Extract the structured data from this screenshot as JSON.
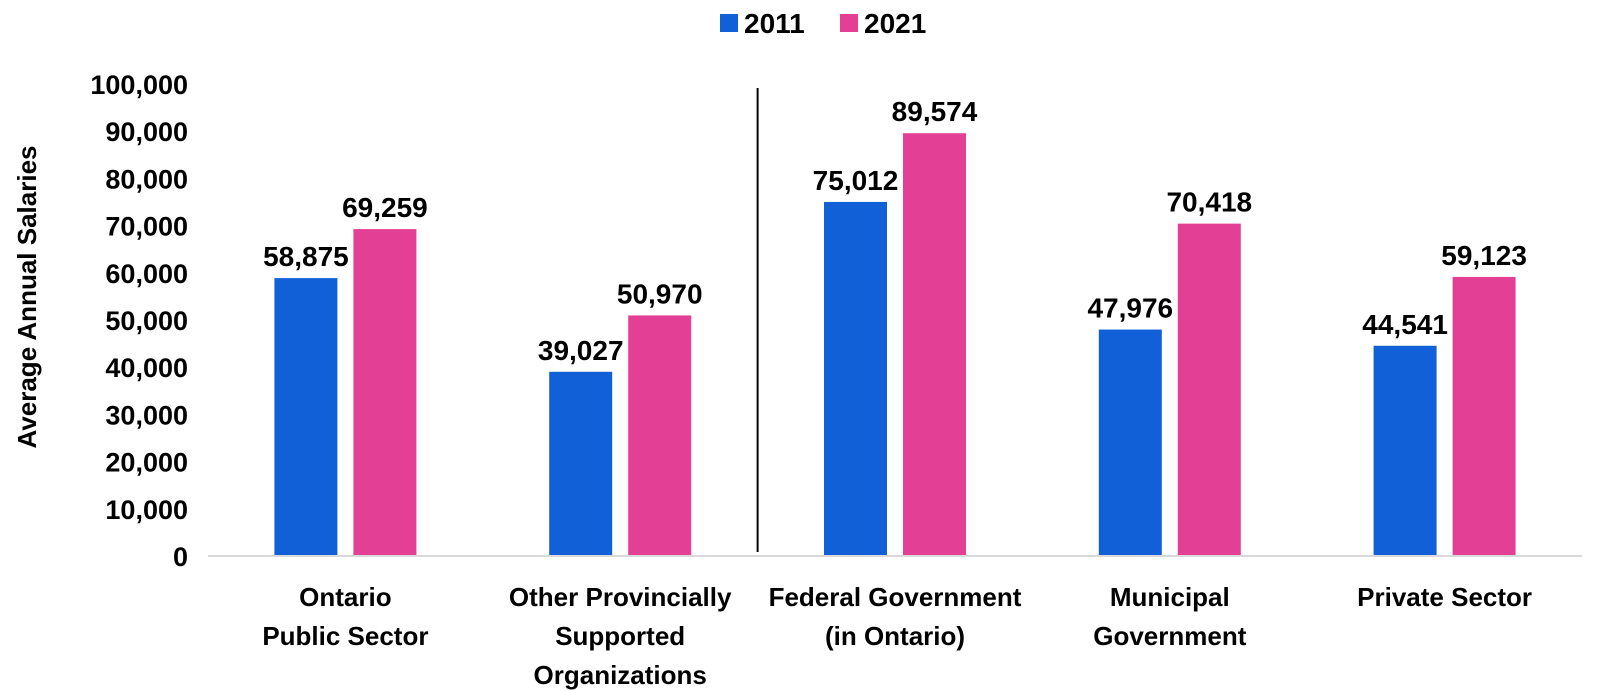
{
  "chart_data": {
    "type": "bar",
    "title": "",
    "ylabel": "Average Annual Salaries",
    "xlabel": "",
    "ylim": [
      0,
      100000
    ],
    "y_ticks": [
      0,
      10000,
      20000,
      30000,
      40000,
      50000,
      60000,
      70000,
      80000,
      90000,
      100000
    ],
    "y_tick_labels": [
      "0",
      "10,000",
      "20,000",
      "30,000",
      "40,000",
      "50,000",
      "60,000",
      "70,000",
      "80,000",
      "90,000",
      "100,000"
    ],
    "categories": [
      [
        "Ontario",
        "Public Sector"
      ],
      [
        "Other Provincially",
        "Supported",
        "Organizations"
      ],
      [
        "Federal Government",
        "(in Ontario)"
      ],
      [
        "Municipal",
        "Government"
      ],
      [
        "Private Sector"
      ]
    ],
    "series": [
      {
        "name": "2011",
        "color": "#1160d8",
        "values": [
          58875,
          39027,
          75012,
          47976,
          44541
        ],
        "labels": [
          "58,875",
          "39,027",
          "75,012",
          "47,976",
          "44,541"
        ]
      },
      {
        "name": "2021",
        "color": "#e33f95",
        "values": [
          69259,
          50970,
          89574,
          70418,
          59123
        ],
        "labels": [
          "69,259",
          "50,970",
          "89,574",
          "70,418",
          "59,123"
        ]
      }
    ],
    "grid": false,
    "legend_position": "top-center",
    "divider_after_category": 2
  }
}
